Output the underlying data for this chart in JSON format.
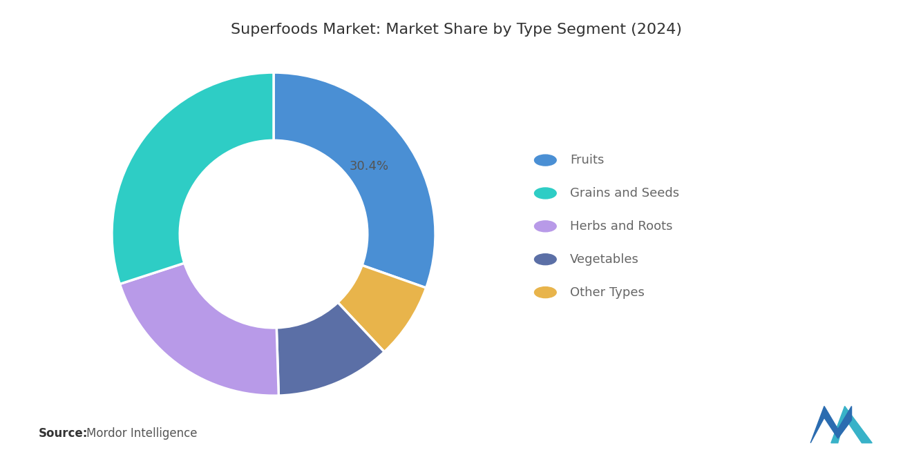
{
  "title": "Superfoods Market: Market Share by Type Segment (2024)",
  "segments": [
    "Fruits",
    "Grains and Seeds",
    "Herbs and Roots",
    "Vegetables",
    "Other Types"
  ],
  "values": [
    30.4,
    30.0,
    20.5,
    11.5,
    7.6
  ],
  "colors": [
    "#4A8FD4",
    "#2ECDC5",
    "#B89AE8",
    "#5B6FA6",
    "#E8B44B"
  ],
  "label_text": "30.4%",
  "label_segment_index": 0,
  "source_bold": "Source:",
  "source_text": "Mordor Intelligence",
  "background_color": "#FFFFFF",
  "title_fontsize": 16,
  "title_color": "#333333",
  "legend_fontsize": 13,
  "legend_text_color": "#666666",
  "annotation_fontsize": 13,
  "annotation_color": "#555555",
  "source_fontsize": 12
}
